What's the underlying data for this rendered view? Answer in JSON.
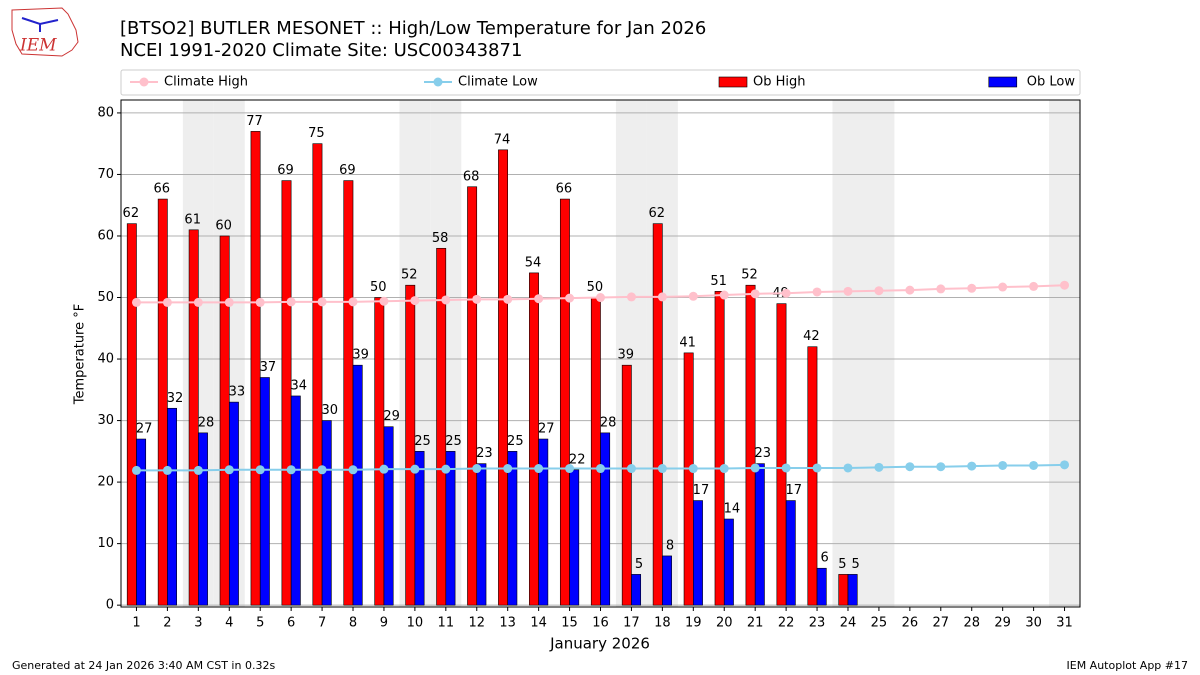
{
  "logo_text": "IEM",
  "chart_data": {
    "type": "bar",
    "title": "[BTSO2] BUTLER MESONET :: High/Low Temperature for Jan 2026",
    "subtitle": "NCEI 1991-2020 Climate Site: USC00343871",
    "xlabel": "January 2026",
    "ylabel": "Temperature °F",
    "footer_left": "Generated at 24 Jan 2026 3:40 AM CST in 0.32s",
    "footer_right": "IEM Autoplot App #17",
    "x": [
      1,
      2,
      3,
      4,
      5,
      6,
      7,
      8,
      9,
      10,
      11,
      12,
      13,
      14,
      15,
      16,
      17,
      18,
      19,
      20,
      21,
      22,
      23,
      24,
      25,
      26,
      27,
      28,
      29,
      30,
      31
    ],
    "xlim": [
      0.5,
      31.5
    ],
    "xticks": [
      1,
      2,
      3,
      4,
      5,
      6,
      7,
      8,
      9,
      10,
      11,
      12,
      13,
      14,
      15,
      16,
      17,
      18,
      19,
      20,
      21,
      22,
      23,
      24,
      25,
      26,
      27,
      28,
      29,
      30,
      31
    ],
    "ylim": [
      -0.3,
      82.1
    ],
    "yticks": [
      0,
      10,
      20,
      30,
      40,
      50,
      60,
      70,
      80
    ],
    "grid": true,
    "weekend_days": [
      3,
      4,
      10,
      11,
      17,
      18,
      24,
      25,
      31
    ],
    "series": [
      {
        "name": "Climate High",
        "type": "line",
        "color": "#ffc0cb",
        "values": [
          49.2,
          49.2,
          49.2,
          49.2,
          49.2,
          49.3,
          49.3,
          49.3,
          49.4,
          49.5,
          49.6,
          49.7,
          49.7,
          49.8,
          49.9,
          50.0,
          50.1,
          50.1,
          50.2,
          50.4,
          50.6,
          50.7,
          50.9,
          51.0,
          51.1,
          51.2,
          51.4,
          51.5,
          51.7,
          51.8,
          52.0
        ]
      },
      {
        "name": "Climate Low",
        "type": "line",
        "color": "#87ceeb",
        "values": [
          21.9,
          21.9,
          21.9,
          22.0,
          22.0,
          22.0,
          22.0,
          22.0,
          22.1,
          22.1,
          22.1,
          22.2,
          22.2,
          22.2,
          22.2,
          22.2,
          22.2,
          22.2,
          22.2,
          22.2,
          22.3,
          22.3,
          22.3,
          22.3,
          22.4,
          22.5,
          22.5,
          22.6,
          22.7,
          22.7,
          22.8
        ]
      },
      {
        "name": "Ob High",
        "type": "bar",
        "color": "#ff0000",
        "values": [
          62,
          66,
          61,
          60,
          77,
          69,
          75,
          69,
          50,
          52,
          58,
          68,
          74,
          54,
          66,
          50,
          39,
          62,
          41,
          51,
          52,
          49,
          42,
          5,
          null,
          null,
          null,
          null,
          null,
          null,
          null
        ]
      },
      {
        "name": "Ob Low",
        "type": "bar",
        "color": "#0000ff",
        "values": [
          27,
          32,
          28,
          33,
          37,
          34,
          30,
          39,
          29,
          25,
          25,
          23,
          25,
          27,
          22,
          28,
          5,
          8,
          17,
          14,
          23,
          17,
          6,
          5,
          null,
          null,
          null,
          null,
          null,
          null,
          null
        ]
      }
    ]
  }
}
